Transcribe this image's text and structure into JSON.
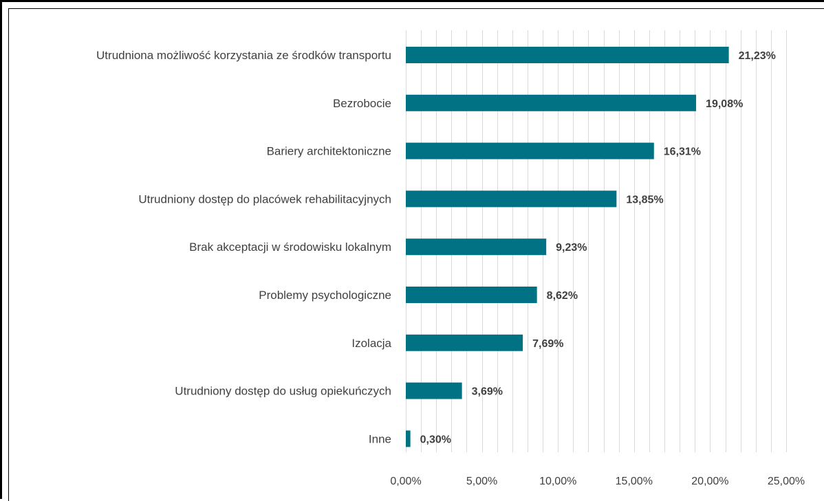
{
  "chart_data": {
    "type": "bar",
    "orientation": "horizontal",
    "categories": [
      "Utrudniona możliwość korzystania ze środków transportu",
      "Bezrobocie",
      "Bariery architektoniczne",
      "Utrudniony dostęp do placówek rehabilitacyjnych",
      "Brak akceptacji w środowisku lokalnym",
      "Problemy psychologiczne",
      "Izolacja",
      "Utrudniony dostęp do usług opiekuńczych",
      "Inne"
    ],
    "values": [
      21.23,
      19.08,
      16.31,
      13.85,
      9.23,
      8.62,
      7.69,
      3.69,
      0.3
    ],
    "value_labels": [
      "21,23%",
      "19,08%",
      "16,31%",
      "13,85%",
      "9,23%",
      "8,62%",
      "7,69%",
      "3,69%",
      "0,30%"
    ],
    "x_ticks": [
      0,
      5,
      10,
      15,
      20,
      25
    ],
    "x_tick_labels": [
      "0,00%",
      "5,00%",
      "10,00%",
      "15,00%",
      "20,00%",
      "25,00%"
    ],
    "xlim": [
      0,
      25
    ],
    "title": "",
    "xlabel": "",
    "ylabel": "",
    "grid": true,
    "minor_grid_step": 1,
    "legend": "none",
    "bar_color": "#007284",
    "grid_color": "#d9d9d9"
  }
}
